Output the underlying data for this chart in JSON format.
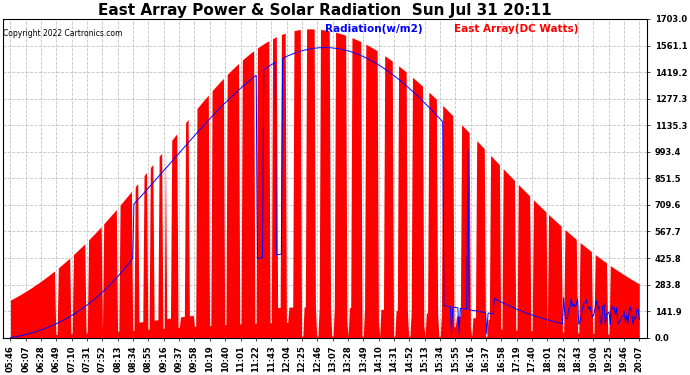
{
  "title": "East Array Power & Solar Radiation  Sun Jul 31 20:11",
  "copyright": "Copyright 2022 Cartronics.com",
  "legend_radiation": "Radiation(w/m2)",
  "legend_east_array": "East Array(DC Watts)",
  "legend_radiation_color": "blue",
  "legend_east_array_color": "red",
  "y_max": 1703.0,
  "y_min": 0.0,
  "y_ticks": [
    0.0,
    141.9,
    283.8,
    425.8,
    567.7,
    709.6,
    851.5,
    993.4,
    1135.3,
    1277.3,
    1419.2,
    1561.1,
    1703.0
  ],
  "background_color": "#ffffff",
  "plot_bg_color": "#ffffff",
  "grid_color": "#aaaaaa",
  "fill_color_radiation": "#ff0000",
  "fill_color_east": "#0000ff",
  "title_fontsize": 11,
  "tick_label_fontsize": 6.0
}
